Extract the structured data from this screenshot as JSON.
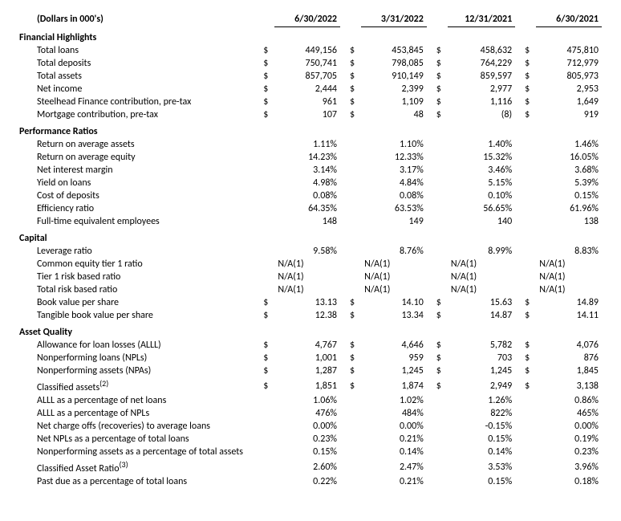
{
  "subtitle": "(Dollars in 000's)",
  "columns": [
    "6/30/2022",
    "3/31/2022",
    "12/31/2021",
    "6/30/2021"
  ],
  "sections": [
    {
      "title": "Financial Highlights",
      "rows": [
        {
          "label": "Total loans",
          "sym": "$",
          "vals": [
            "449,156",
            "453,845",
            "458,632",
            "475,810"
          ]
        },
        {
          "label": "Total deposits",
          "sym": "$",
          "vals": [
            "750,741",
            "798,085",
            "764,229",
            "712,979"
          ]
        },
        {
          "label": "Total assets",
          "sym": "$",
          "vals": [
            "857,705",
            "910,149",
            "859,597",
            "805,973"
          ]
        },
        {
          "label": "Net income",
          "sym": "$",
          "vals": [
            "2,444",
            "2,399",
            "2,977",
            "2,953"
          ]
        },
        {
          "label": "Steelhead Finance contribution, pre-tax",
          "sym": "$",
          "vals": [
            "961",
            "1,109",
            "1,116",
            "1,649"
          ]
        },
        {
          "label": "Mortgage contribution, pre-tax",
          "sym": "$",
          "vals": [
            "107",
            "48",
            "(8)",
            "919"
          ]
        }
      ]
    },
    {
      "title": "Performance Ratios",
      "rows": [
        {
          "label": "Return on average assets",
          "sym": "",
          "vals": [
            "1.11%",
            "1.10%",
            "1.40%",
            "1.46%"
          ]
        },
        {
          "label": "Return on average equity",
          "sym": "",
          "vals": [
            "14.23%",
            "12.33%",
            "15.32%",
            "16.05%"
          ]
        },
        {
          "label": "Net interest margin",
          "sym": "",
          "vals": [
            "3.14%",
            "3.17%",
            "3.46%",
            "3.68%"
          ]
        },
        {
          "label": "Yield on loans",
          "sym": "",
          "vals": [
            "4.98%",
            "4.84%",
            "5.15%",
            "5.39%"
          ]
        },
        {
          "label": "Cost of deposits",
          "sym": "",
          "vals": [
            "0.08%",
            "0.08%",
            "0.10%",
            "0.15%"
          ]
        },
        {
          "label": "Efficiency ratio",
          "sym": "",
          "vals": [
            "64.35%",
            "63.53%",
            "56.65%",
            "61.96%"
          ]
        },
        {
          "label": "Full-time equivalent employees",
          "sym": "",
          "vals": [
            "148",
            "149",
            "140",
            "138"
          ]
        }
      ]
    },
    {
      "title": "Capital",
      "rows": [
        {
          "label": "Leverage ratio",
          "sym": "",
          "vals": [
            "9.58%",
            "8.76%",
            "8.99%",
            "8.83%"
          ]
        },
        {
          "label": "Common equity tier 1 ratio",
          "sym": "",
          "vals": [
            "N/A(1)",
            "N/A(1)",
            "N/A(1)",
            "N/A(1)"
          ],
          "align": "left"
        },
        {
          "label": "Tier 1 risk based ratio",
          "sym": "",
          "vals": [
            "N/A(1)",
            "N/A(1)",
            "N/A(1)",
            "N/A(1)"
          ],
          "align": "left"
        },
        {
          "label": "Total risk based ratio",
          "sym": "",
          "vals": [
            "N/A(1)",
            "N/A(1)",
            "N/A(1)",
            "N/A(1)"
          ],
          "align": "left"
        },
        {
          "label": "Book value per share",
          "sym": "$",
          "vals": [
            "13.13",
            "14.10",
            "15.63",
            "14.89"
          ]
        },
        {
          "label": "Tangible book value per share",
          "sym": "$",
          "vals": [
            "12.38",
            "13.34",
            "14.87",
            "14.11"
          ]
        }
      ]
    },
    {
      "title": "Asset Quality",
      "rows": [
        {
          "label": "Allowance for loan losses (ALLL)",
          "sym": "$",
          "vals": [
            "4,767",
            "4,646",
            "5,782",
            "4,076"
          ]
        },
        {
          "label": "Nonperforming loans (NPLs)",
          "sym": "$",
          "vals": [
            "1,001",
            "959",
            "703",
            "876"
          ]
        },
        {
          "label": "Nonperforming assets (NPAs)",
          "sym": "$",
          "vals": [
            "1,287",
            "1,245",
            "1,245",
            "1,845"
          ]
        },
        {
          "label": "Classified assets",
          "sup": "(2)",
          "sym": "$",
          "vals": [
            "1,851",
            "1,874",
            "2,949",
            "3,138"
          ]
        },
        {
          "label": "ALLL as a percentage of net loans",
          "sym": "",
          "vals": [
            "1.06%",
            "1.02%",
            "1.26%",
            "0.86%"
          ]
        },
        {
          "label": "ALLL as a percentage of NPLs",
          "sym": "",
          "vals": [
            "476%",
            "484%",
            "822%",
            "465%"
          ]
        },
        {
          "label": "Net charge offs (recoveries) to average loans",
          "sym": "",
          "vals": [
            "0.00%",
            "0.00%",
            "-0.15%",
            "0.00%"
          ]
        },
        {
          "label": "Net NPLs as a percentage of total loans",
          "sym": "",
          "vals": [
            "0.23%",
            "0.21%",
            "0.15%",
            "0.19%"
          ]
        },
        {
          "label": "Nonperforming assets as a percentage of total assets",
          "sym": "",
          "vals": [
            "0.15%",
            "0.14%",
            "0.14%",
            "0.23%"
          ]
        },
        {
          "label": "Classified Asset Ratio",
          "sup": "(3)",
          "sym": "",
          "vals": [
            "2.60%",
            "2.47%",
            "3.53%",
            "3.96%"
          ]
        },
        {
          "label": "Past due as a percentage of total loans",
          "sym": "",
          "vals": [
            "0.22%",
            "0.21%",
            "0.15%",
            "0.18%"
          ]
        }
      ]
    }
  ]
}
